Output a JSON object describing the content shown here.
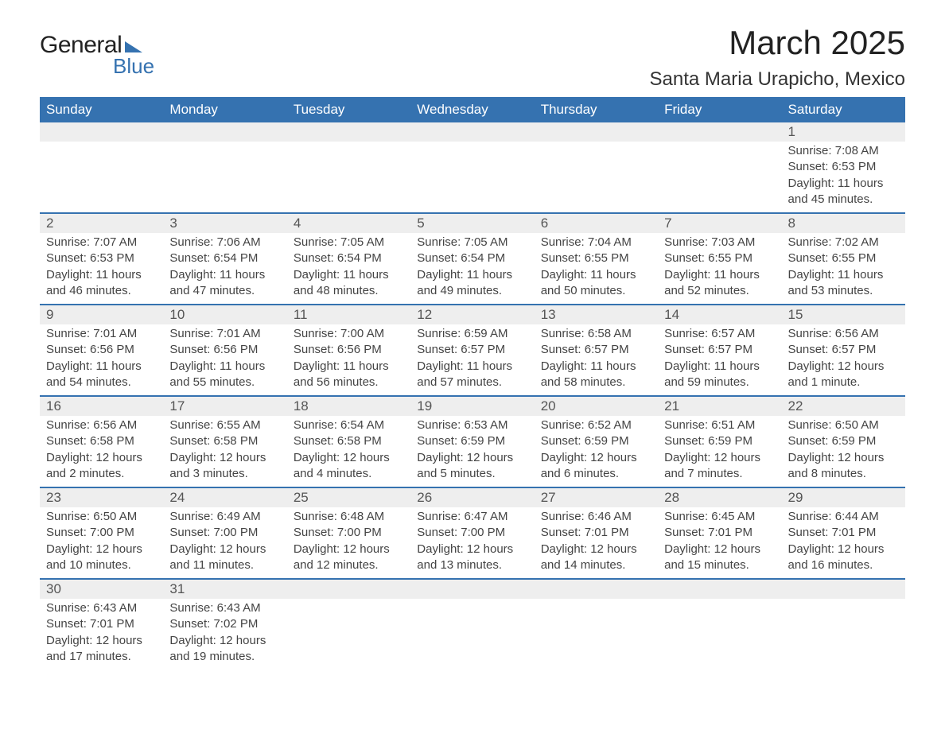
{
  "logo": {
    "line1": "General",
    "line2": "Blue"
  },
  "title": "March 2025",
  "location": "Santa Maria Urapicho, Mexico",
  "colors": {
    "header_bg": "#3572b0",
    "header_text": "#ffffff",
    "daynum_bg": "#eeeeee",
    "row_border": "#3572b0",
    "text": "#333333"
  },
  "day_headers": [
    "Sunday",
    "Monday",
    "Tuesday",
    "Wednesday",
    "Thursday",
    "Friday",
    "Saturday"
  ],
  "weeks": [
    [
      null,
      null,
      null,
      null,
      null,
      null,
      {
        "n": "1",
        "sunrise": "7:08 AM",
        "sunset": "6:53 PM",
        "daylight": "11 hours and 45 minutes."
      }
    ],
    [
      {
        "n": "2",
        "sunrise": "7:07 AM",
        "sunset": "6:53 PM",
        "daylight": "11 hours and 46 minutes."
      },
      {
        "n": "3",
        "sunrise": "7:06 AM",
        "sunset": "6:54 PM",
        "daylight": "11 hours and 47 minutes."
      },
      {
        "n": "4",
        "sunrise": "7:05 AM",
        "sunset": "6:54 PM",
        "daylight": "11 hours and 48 minutes."
      },
      {
        "n": "5",
        "sunrise": "7:05 AM",
        "sunset": "6:54 PM",
        "daylight": "11 hours and 49 minutes."
      },
      {
        "n": "6",
        "sunrise": "7:04 AM",
        "sunset": "6:55 PM",
        "daylight": "11 hours and 50 minutes."
      },
      {
        "n": "7",
        "sunrise": "7:03 AM",
        "sunset": "6:55 PM",
        "daylight": "11 hours and 52 minutes."
      },
      {
        "n": "8",
        "sunrise": "7:02 AM",
        "sunset": "6:55 PM",
        "daylight": "11 hours and 53 minutes."
      }
    ],
    [
      {
        "n": "9",
        "sunrise": "7:01 AM",
        "sunset": "6:56 PM",
        "daylight": "11 hours and 54 minutes."
      },
      {
        "n": "10",
        "sunrise": "7:01 AM",
        "sunset": "6:56 PM",
        "daylight": "11 hours and 55 minutes."
      },
      {
        "n": "11",
        "sunrise": "7:00 AM",
        "sunset": "6:56 PM",
        "daylight": "11 hours and 56 minutes."
      },
      {
        "n": "12",
        "sunrise": "6:59 AM",
        "sunset": "6:57 PM",
        "daylight": "11 hours and 57 minutes."
      },
      {
        "n": "13",
        "sunrise": "6:58 AM",
        "sunset": "6:57 PM",
        "daylight": "11 hours and 58 minutes."
      },
      {
        "n": "14",
        "sunrise": "6:57 AM",
        "sunset": "6:57 PM",
        "daylight": "11 hours and 59 minutes."
      },
      {
        "n": "15",
        "sunrise": "6:56 AM",
        "sunset": "6:57 PM",
        "daylight": "12 hours and 1 minute."
      }
    ],
    [
      {
        "n": "16",
        "sunrise": "6:56 AM",
        "sunset": "6:58 PM",
        "daylight": "12 hours and 2 minutes."
      },
      {
        "n": "17",
        "sunrise": "6:55 AM",
        "sunset": "6:58 PM",
        "daylight": "12 hours and 3 minutes."
      },
      {
        "n": "18",
        "sunrise": "6:54 AM",
        "sunset": "6:58 PM",
        "daylight": "12 hours and 4 minutes."
      },
      {
        "n": "19",
        "sunrise": "6:53 AM",
        "sunset": "6:59 PM",
        "daylight": "12 hours and 5 minutes."
      },
      {
        "n": "20",
        "sunrise": "6:52 AM",
        "sunset": "6:59 PM",
        "daylight": "12 hours and 6 minutes."
      },
      {
        "n": "21",
        "sunrise": "6:51 AM",
        "sunset": "6:59 PM",
        "daylight": "12 hours and 7 minutes."
      },
      {
        "n": "22",
        "sunrise": "6:50 AM",
        "sunset": "6:59 PM",
        "daylight": "12 hours and 8 minutes."
      }
    ],
    [
      {
        "n": "23",
        "sunrise": "6:50 AM",
        "sunset": "7:00 PM",
        "daylight": "12 hours and 10 minutes."
      },
      {
        "n": "24",
        "sunrise": "6:49 AM",
        "sunset": "7:00 PM",
        "daylight": "12 hours and 11 minutes."
      },
      {
        "n": "25",
        "sunrise": "6:48 AM",
        "sunset": "7:00 PM",
        "daylight": "12 hours and 12 minutes."
      },
      {
        "n": "26",
        "sunrise": "6:47 AM",
        "sunset": "7:00 PM",
        "daylight": "12 hours and 13 minutes."
      },
      {
        "n": "27",
        "sunrise": "6:46 AM",
        "sunset": "7:01 PM",
        "daylight": "12 hours and 14 minutes."
      },
      {
        "n": "28",
        "sunrise": "6:45 AM",
        "sunset": "7:01 PM",
        "daylight": "12 hours and 15 minutes."
      },
      {
        "n": "29",
        "sunrise": "6:44 AM",
        "sunset": "7:01 PM",
        "daylight": "12 hours and 16 minutes."
      }
    ],
    [
      {
        "n": "30",
        "sunrise": "6:43 AM",
        "sunset": "7:01 PM",
        "daylight": "12 hours and 17 minutes."
      },
      {
        "n": "31",
        "sunrise": "6:43 AM",
        "sunset": "7:02 PM",
        "daylight": "12 hours and 19 minutes."
      },
      null,
      null,
      null,
      null,
      null
    ]
  ],
  "labels": {
    "sunrise": "Sunrise: ",
    "sunset": "Sunset: ",
    "daylight": "Daylight: "
  }
}
